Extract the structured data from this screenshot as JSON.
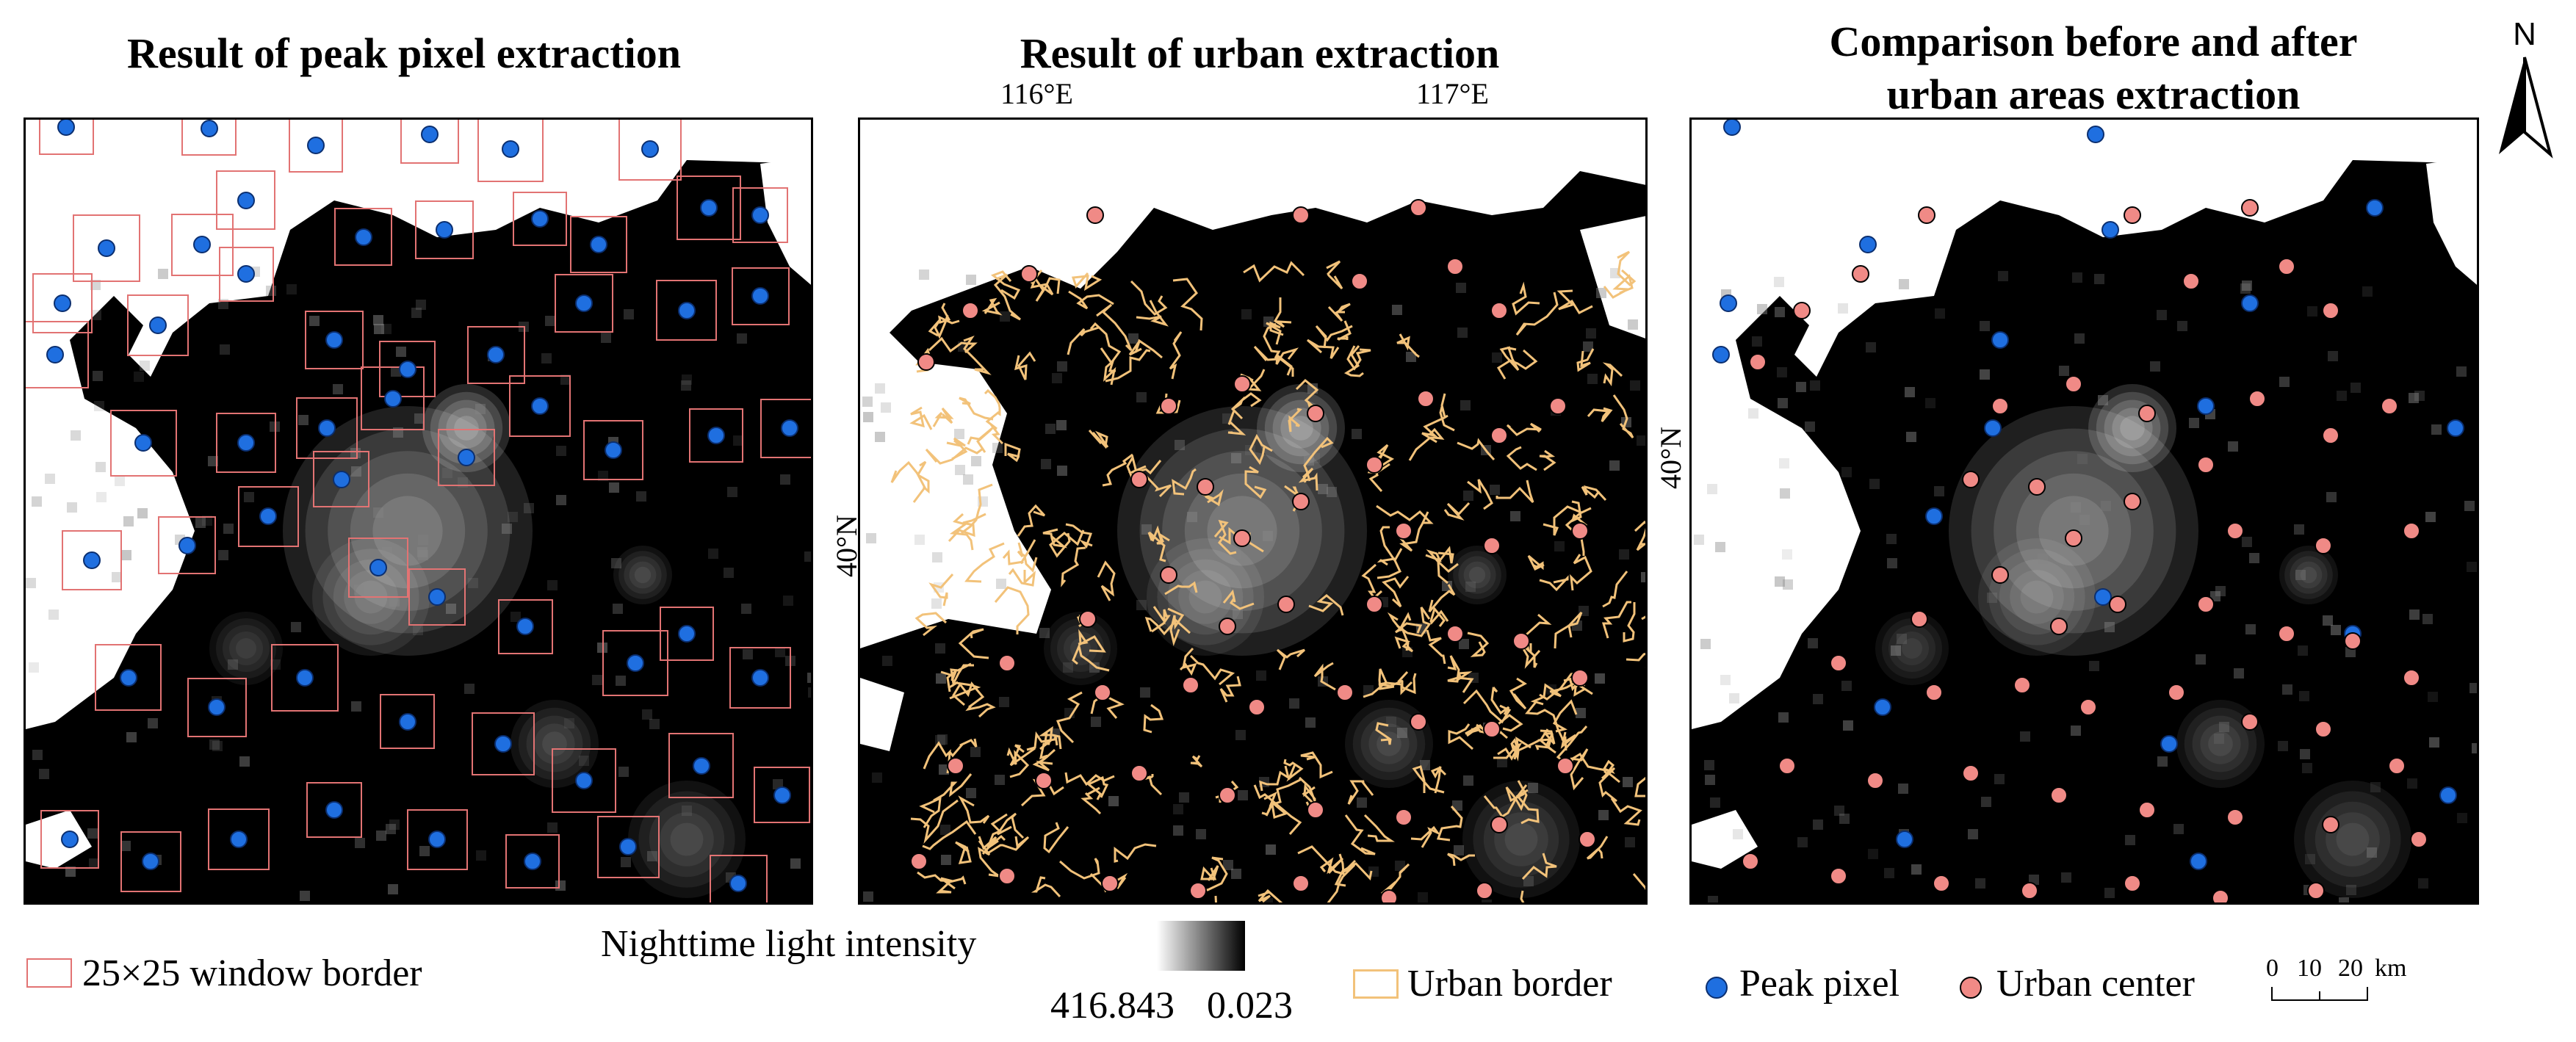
{
  "titles": {
    "left": "Result of peak pixel extraction",
    "middle": "Result of urban extraction",
    "right_line1": "Comparison before and after",
    "right_line2": "urban areas extraction"
  },
  "coords": {
    "lon_116": "116°E",
    "lon_117": "117°E",
    "lat_40_mid": "40°N",
    "lat_40_right": "40°N"
  },
  "north_arrow": {
    "label": "N"
  },
  "legend": {
    "window_border": "25×25 window border",
    "ntl_title": "Nighttime light intensity",
    "ntl_max": "416.843",
    "ntl_min": "0.023",
    "urban_border": "Urban border",
    "peak_pixel": "Peak pixel",
    "urban_center": "Urban center",
    "scale_0": "0",
    "scale_10": "10",
    "scale_20": "20",
    "scale_unit": "km"
  },
  "colors": {
    "peak_pixel": "#1f6fe0",
    "urban_center": "#f08a86",
    "window_border": "#e27373",
    "urban_border": "#f2c27a",
    "background": "#000000",
    "no_data": "#ffffff"
  }
}
